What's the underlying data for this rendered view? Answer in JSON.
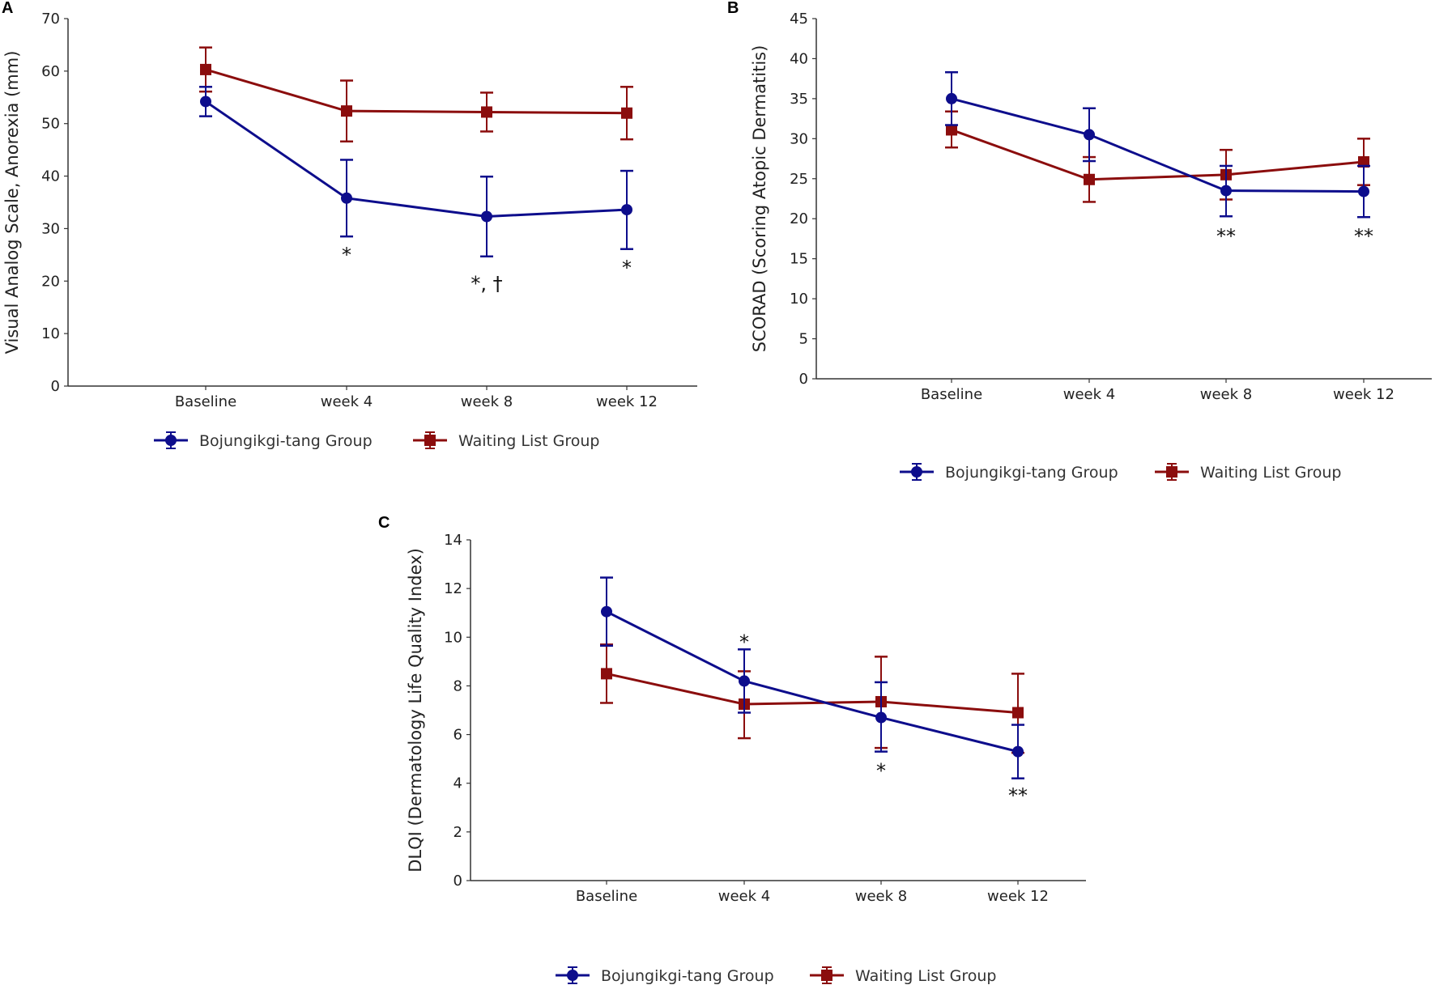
{
  "colors": {
    "bojungikgi": "#0d0d8c",
    "waiting": "#8b0d0d",
    "axis": "#333333"
  },
  "legend": {
    "series_a": "Bojungikgi-tang Group",
    "series_b": "Waiting List Group"
  },
  "chart_data": [
    {
      "panel": "A",
      "type": "line",
      "ylabel": "Visual Analog Scale, Anorexia (mm)",
      "categories": [
        "Baseline",
        "week 4",
        "week 8",
        "week 12"
      ],
      "ylim": [
        0,
        70
      ],
      "yticks": [
        0,
        10,
        20,
        30,
        40,
        50,
        60,
        70
      ],
      "grid": false,
      "legend_position": "bottom",
      "series": [
        {
          "name": "Bojungikgi-tang Group",
          "marker": "circle",
          "values": [
            54.2,
            35.8,
            32.3,
            33.6
          ],
          "err_low": [
            51.4,
            28.5,
            24.7,
            26.1
          ],
          "err_high": [
            57.0,
            43.1,
            39.9,
            41.0
          ]
        },
        {
          "name": "Waiting List Group",
          "marker": "square",
          "values": [
            60.3,
            52.4,
            52.2,
            52.0
          ],
          "err_low": [
            56.1,
            46.6,
            48.5,
            47.0
          ],
          "err_high": [
            64.5,
            58.2,
            55.9,
            57.0
          ]
        }
      ],
      "annotations": [
        {
          "category": "week 4",
          "text": "*",
          "y": 25
        },
        {
          "category": "week 8",
          "text": "*, †",
          "y": 19.5
        },
        {
          "category": "week 12",
          "text": "*",
          "y": 22.5
        }
      ]
    },
    {
      "panel": "B",
      "type": "line",
      "ylabel": "SCORAD (Scoring Atopic Dermatitis)",
      "categories": [
        "Baseline",
        "week 4",
        "week 8",
        "week 12"
      ],
      "ylim": [
        0,
        45
      ],
      "yticks": [
        0,
        5,
        10,
        15,
        20,
        25,
        30,
        35,
        40,
        45
      ],
      "grid": false,
      "legend_position": "bottom",
      "series": [
        {
          "name": "Bojungikgi-tang Group",
          "marker": "circle",
          "values": [
            35.0,
            30.5,
            23.5,
            23.4
          ],
          "err_low": [
            31.7,
            27.2,
            20.3,
            20.2
          ],
          "err_high": [
            38.3,
            33.8,
            26.6,
            26.6
          ]
        },
        {
          "name": "Waiting List Group",
          "marker": "square",
          "values": [
            31.1,
            24.9,
            25.5,
            27.1
          ],
          "err_low": [
            28.9,
            22.1,
            22.4,
            24.2
          ],
          "err_high": [
            33.4,
            27.7,
            28.6,
            30.0
          ]
        }
      ],
      "annotations": [
        {
          "category": "week 8",
          "text": "**",
          "y": 17.8
        },
        {
          "category": "week 12",
          "text": "**",
          "y": 17.8
        }
      ]
    },
    {
      "panel": "C",
      "type": "line",
      "ylabel": "DLQI (Dermatology Life Quality Index)",
      "categories": [
        "Baseline",
        "week 4",
        "week 8",
        "week 12"
      ],
      "ylim": [
        0,
        14
      ],
      "yticks": [
        0,
        2,
        4,
        6,
        8,
        10,
        12,
        14
      ],
      "grid": false,
      "legend_position": "bottom",
      "series": [
        {
          "name": "Bojungikgi-tang Group",
          "marker": "circle",
          "values": [
            11.05,
            8.2,
            6.7,
            5.3
          ],
          "err_low": [
            9.65,
            6.9,
            5.3,
            4.2
          ],
          "err_high": [
            12.45,
            9.5,
            8.15,
            6.4
          ]
        },
        {
          "name": "Waiting List Group",
          "marker": "square",
          "values": [
            8.5,
            7.25,
            7.35,
            6.9
          ],
          "err_low": [
            7.3,
            5.85,
            5.45,
            5.25
          ],
          "err_high": [
            9.7,
            8.6,
            9.2,
            8.5
          ]
        }
      ],
      "annotations": [
        {
          "category": "week 4",
          "text": "*",
          "y": 9.8
        },
        {
          "category": "week 8",
          "text": "*",
          "y": 4.5
        },
        {
          "category": "week 12",
          "text": "**",
          "y": 3.5
        }
      ]
    }
  ]
}
